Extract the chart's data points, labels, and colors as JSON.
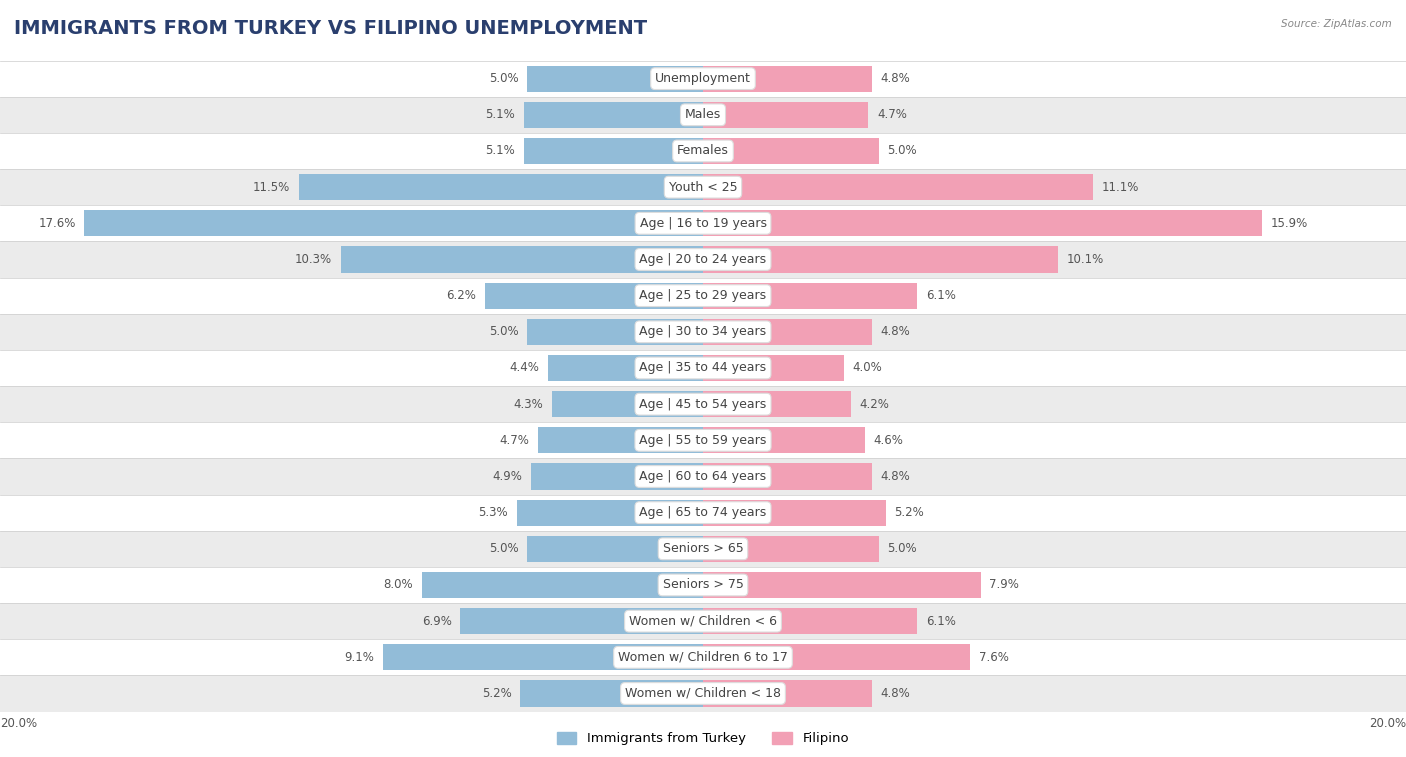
{
  "title": "IMMIGRANTS FROM TURKEY VS FILIPINO UNEMPLOYMENT",
  "source": "Source: ZipAtlas.com",
  "categories": [
    "Unemployment",
    "Males",
    "Females",
    "Youth < 25",
    "Age | 16 to 19 years",
    "Age | 20 to 24 years",
    "Age | 25 to 29 years",
    "Age | 30 to 34 years",
    "Age | 35 to 44 years",
    "Age | 45 to 54 years",
    "Age | 55 to 59 years",
    "Age | 60 to 64 years",
    "Age | 65 to 74 years",
    "Seniors > 65",
    "Seniors > 75",
    "Women w/ Children < 6",
    "Women w/ Children 6 to 17",
    "Women w/ Children < 18"
  ],
  "turkey_values": [
    5.0,
    5.1,
    5.1,
    11.5,
    17.6,
    10.3,
    6.2,
    5.0,
    4.4,
    4.3,
    4.7,
    4.9,
    5.3,
    5.0,
    8.0,
    6.9,
    9.1,
    5.2
  ],
  "filipino_values": [
    4.8,
    4.7,
    5.0,
    11.1,
    15.9,
    10.1,
    6.1,
    4.8,
    4.0,
    4.2,
    4.6,
    4.8,
    5.2,
    5.0,
    7.9,
    6.1,
    7.6,
    4.8
  ],
  "turkey_color": "#92bcd8",
  "filipino_color": "#f2a0b5",
  "turkey_label": "Immigrants from Turkey",
  "filipino_label": "Filipino",
  "max_val": 20.0,
  "row_color_light": "#ffffff",
  "row_color_dark": "#ebebeb",
  "label_fontsize": 9.0,
  "value_fontsize": 8.5,
  "title_fontsize": 14,
  "title_color": "#2a3f6e",
  "value_color": "#555555"
}
